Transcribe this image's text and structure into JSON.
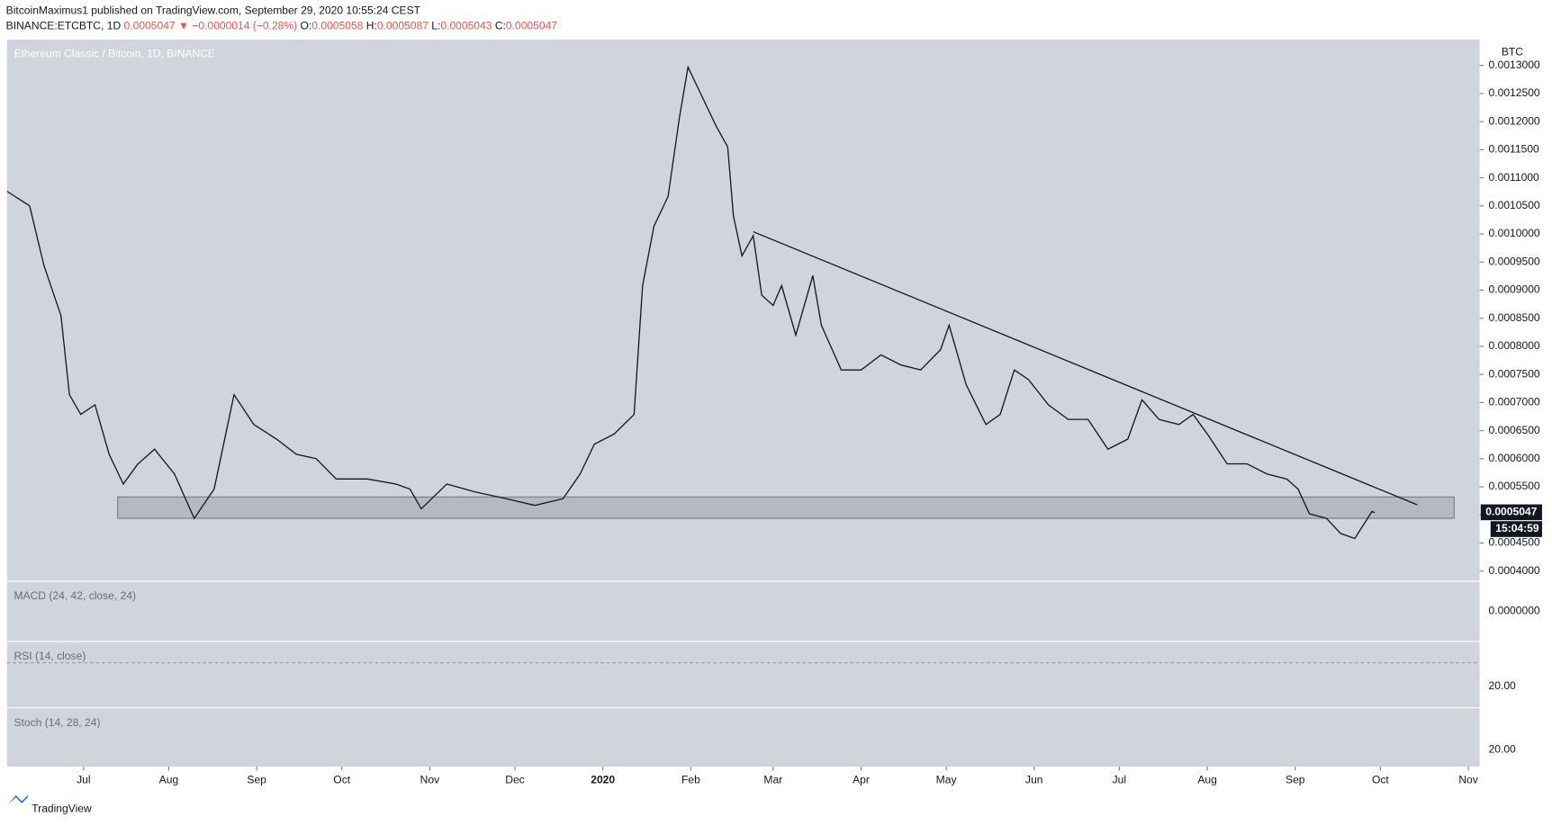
{
  "header": {
    "publisher": "BitcoinMaximus1 published on TradingView.com, September 29, 2020 10:55:24 CEST",
    "symbol": "BINANCE:ETCBTC, 1D",
    "last": "0.0005047",
    "arrow": "▼",
    "change": "−0.0000014 (−0.28%)",
    "ohlc": [
      {
        "label": "O:",
        "value": "0.0005058"
      },
      {
        "label": "H:",
        "value": "0.0005087"
      },
      {
        "label": "L:",
        "value": "0.0005043"
      },
      {
        "label": "C:",
        "value": "0.0005047"
      }
    ]
  },
  "chart_data": {
    "type": "line",
    "title": "Ethereum Classic / Bitcoin, 1D, BINANCE",
    "y_axis_label": "BTC",
    "color": "#131722",
    "x": [
      0,
      8,
      13,
      19,
      22,
      26,
      31,
      36,
      41,
      46,
      52,
      59,
      66,
      73,
      80,
      87,
      95,
      102,
      109,
      116,
      127,
      137,
      142,
      146,
      155,
      165,
      176,
      186,
      196,
      202,
      207,
      214,
      221,
      224,
      228,
      233,
      237,
      240,
      245,
      250,
      254,
      256,
      259,
      263,
      266,
      270,
      273,
      278,
      284,
      287,
      294,
      301,
      308,
      315,
      322,
      329,
      332,
      338,
      345,
      350,
      355,
      360,
      367,
      374,
      381,
      388,
      395,
      400,
      406,
      413,
      418,
      423,
      430,
      437,
      444,
      451,
      455,
      459,
      465,
      470,
      475,
      481,
      482
    ],
    "values": [
      0.001076,
      0.00105,
      0.000944,
      0.000855,
      0.000714,
      0.000679,
      0.000696,
      0.000608,
      0.000555,
      0.00059,
      0.000617,
      0.000573,
      0.000494,
      0.000546,
      0.000714,
      0.000661,
      0.000635,
      0.000608,
      0.0006,
      0.000564,
      0.000564,
      0.000555,
      0.000546,
      0.000511,
      0.000555,
      0.000541,
      0.000529,
      0.000517,
      0.000529,
      0.000573,
      0.000626,
      0.000644,
      0.000679,
      0.000908,
      0.001014,
      0.001067,
      0.001208,
      0.001297,
      0.001244,
      0.001191,
      0.001155,
      0.001032,
      0.000961,
      0.000997,
      0.000891,
      0.000873,
      0.000908,
      0.00082,
      0.000926,
      0.000838,
      0.000758,
      0.000758,
      0.000785,
      0.000767,
      0.000758,
      0.000794,
      0.000838,
      0.000732,
      0.000661,
      0.000679,
      0.000758,
      0.000741,
      0.000696,
      0.00067,
      0.00067,
      0.000617,
      0.000635,
      0.000705,
      0.00067,
      0.000661,
      0.000679,
      0.000644,
      0.000591,
      0.000591,
      0.000573,
      0.000564,
      0.000546,
      0.000502,
      0.000494,
      0.000467,
      0.000458,
      0.000506,
      0.000504
    ],
    "xlim": [
      0,
      519
    ],
    "ylim": [
      0.000383,
      0.001346
    ],
    "xticks": [
      {
        "value": 27,
        "label": "Jul"
      },
      {
        "value": 57,
        "label": "Aug"
      },
      {
        "value": 88,
        "label": "Sep"
      },
      {
        "value": 118,
        "label": "Oct"
      },
      {
        "value": 149,
        "label": "Nov"
      },
      {
        "value": 179,
        "label": "Dec"
      },
      {
        "value": 210,
        "label": "2020"
      },
      {
        "value": 241,
        "label": "Feb"
      },
      {
        "value": 270,
        "label": "Mar"
      },
      {
        "value": 301,
        "label": "Apr"
      },
      {
        "value": 331,
        "label": "May"
      },
      {
        "value": 362,
        "label": "Jun"
      },
      {
        "value": 392,
        "label": "Jul"
      },
      {
        "value": 423,
        "label": "Aug"
      },
      {
        "value": 454,
        "label": "Sep"
      },
      {
        "value": 484,
        "label": "Oct"
      },
      {
        "value": 515,
        "label": "Nov"
      }
    ],
    "yticks": [
      {
        "value": 0.0004,
        "label": "0.0004000"
      },
      {
        "value": 0.00045,
        "label": "0.0004500"
      },
      {
        "value": 0.0005,
        "label": "0.0005000"
      },
      {
        "value": 0.00055,
        "label": "0.0005500"
      },
      {
        "value": 0.0006,
        "label": "0.0006000"
      },
      {
        "value": 0.00065,
        "label": "0.0006500"
      },
      {
        "value": 0.0007,
        "label": "0.0007000"
      },
      {
        "value": 0.00075,
        "label": "0.0007500"
      },
      {
        "value": 0.0008,
        "label": "0.0008000"
      },
      {
        "value": 0.00085,
        "label": "0.0008500"
      },
      {
        "value": 0.0009,
        "label": "0.0009000"
      },
      {
        "value": 0.00095,
        "label": "0.0009500"
      },
      {
        "value": 0.001,
        "label": "0.0010000"
      },
      {
        "value": 0.00105,
        "label": "0.0010500"
      },
      {
        "value": 0.0011,
        "label": "0.0011000"
      },
      {
        "value": 0.00115,
        "label": "0.0011500"
      },
      {
        "value": 0.0012,
        "label": "0.0012000"
      },
      {
        "value": 0.00125,
        "label": "0.0012500"
      },
      {
        "value": 0.0013,
        "label": "0.0013000"
      }
    ],
    "price_label": {
      "value": 0.0005047,
      "label": "0.0005047",
      "countdown": "15:04:59"
    },
    "trendline": {
      "x": [
        263,
        497
      ],
      "y": [
        0.001004,
        0.000518
      ]
    },
    "zone": {
      "x": [
        39,
        510
      ],
      "y": [
        0.000494,
        0.000532
      ]
    },
    "indicators": [
      {
        "name": "MACD (24, 42, close, 24)",
        "tick": "0.0000000"
      },
      {
        "name": "RSI (14, close)",
        "tick": "20.00"
      },
      {
        "name": "Stoch (14, 28, 24)",
        "tick": "20.00"
      }
    ]
  },
  "footer": {
    "brand": "TradingView"
  }
}
